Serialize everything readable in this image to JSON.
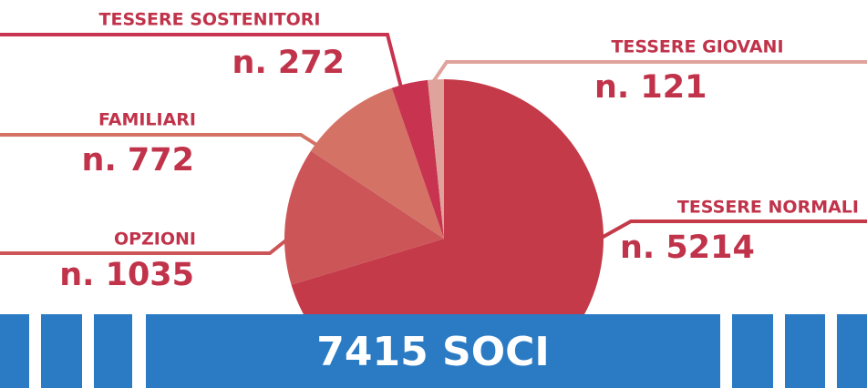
{
  "chart_data": {
    "type": "pie",
    "categories": [
      "TESSERE NORMALI",
      "OPZIONI",
      "FAMILIARI",
      "TESSERE SOSTENITORI",
      "TESSERE GIOVANI"
    ],
    "values": [
      5214,
      1035,
      772,
      272,
      121
    ],
    "value_labels": [
      "n. 5214",
      "n. 1035",
      "n. 772",
      "n. 272",
      "n. 121"
    ],
    "colors": [
      "#c43a48",
      "#cc5558",
      "#d47266",
      "#c8334f",
      "#e0a39c"
    ],
    "banner": "7415 SOCI"
  }
}
